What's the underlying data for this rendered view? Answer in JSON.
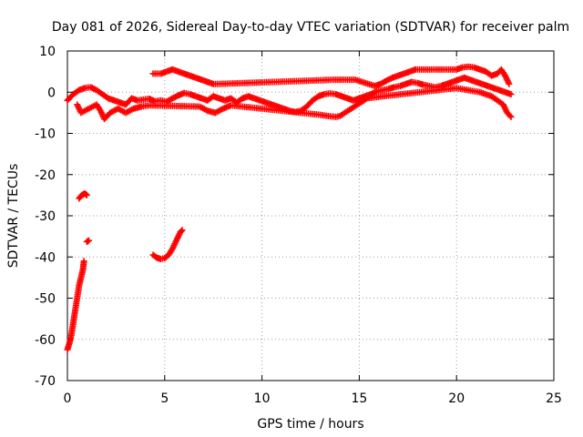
{
  "chart_data": {
    "type": "scatter",
    "title": "Day 081 of 2026, Sidereal Day-to-day VTEC variation (SDTVAR) for receiver palm",
    "xlabel": "GPS time / hours",
    "ylabel": "SDTVAR / TECUs",
    "xlim": [
      0,
      25
    ],
    "ylim": [
      -70,
      10
    ],
    "xticks": [
      "0",
      "5",
      "10",
      "15",
      "20",
      "25"
    ],
    "yticks": [
      "10",
      "0",
      "-10",
      "-20",
      "-30",
      "-40",
      "-50",
      "-60",
      "-70"
    ],
    "grid": true,
    "marker": "+",
    "series": [
      {
        "name": "SDTVAR",
        "color": "#ff0000",
        "segments": [
          {
            "label": "steep rise",
            "points": [
              [
                0.0,
                -62.5
              ],
              [
                0.1,
                -61
              ],
              [
                0.2,
                -59
              ],
              [
                0.3,
                -56
              ],
              [
                0.4,
                -53
              ],
              [
                0.5,
                -50
              ],
              [
                0.6,
                -47
              ],
              [
                0.7,
                -45
              ],
              [
                0.8,
                -43
              ],
              [
                0.85,
                -41
              ]
            ]
          },
          {
            "label": "cluster near -25",
            "points": [
              [
                0.6,
                -25.8
              ],
              [
                0.7,
                -25.2
              ],
              [
                0.8,
                -24.8
              ],
              [
                0.9,
                -24.6
              ],
              [
                1.0,
                -25.0
              ]
            ]
          },
          {
            "label": "point near -36",
            "points": [
              [
                1.0,
                -36.3
              ],
              [
                1.1,
                -36.0
              ]
            ]
          },
          {
            "label": "arc near -40",
            "points": [
              [
                4.4,
                -39.5
              ],
              [
                4.6,
                -40.2
              ],
              [
                4.8,
                -40.5
              ],
              [
                5.0,
                -40.3
              ],
              [
                5.2,
                -39.5
              ],
              [
                5.4,
                -38
              ],
              [
                5.6,
                -36
              ],
              [
                5.8,
                -34
              ],
              [
                5.9,
                -33.5
              ]
            ]
          },
          {
            "label": "main band",
            "points": [
              [
                0.0,
                -2
              ],
              [
                0.3,
                -0.5
              ],
              [
                0.6,
                0.5
              ],
              [
                0.9,
                1.0
              ],
              [
                1.2,
                1.2
              ],
              [
                1.5,
                0.5
              ],
              [
                1.8,
                -0.5
              ],
              [
                2.1,
                -1.5
              ],
              [
                2.4,
                -2.0
              ],
              [
                2.7,
                -2.5
              ],
              [
                3.0,
                -3.0
              ],
              [
                3.3,
                -1.5
              ],
              [
                3.6,
                -2.0
              ],
              [
                3.9,
                -1.8
              ],
              [
                4.2,
                -1.6
              ],
              [
                4.5,
                -2.2
              ],
              [
                4.8,
                -2.0
              ],
              [
                5.1,
                -2.3
              ],
              [
                5.4,
                -1.5
              ],
              [
                5.7,
                -0.8
              ],
              [
                6.0,
                -0.2
              ],
              [
                6.3,
                -0.5
              ],
              [
                6.6,
                -1.0
              ],
              [
                6.9,
                -1.5
              ],
              [
                7.2,
                -2.0
              ],
              [
                7.5,
                -1.0
              ],
              [
                7.8,
                -1.5
              ],
              [
                8.1,
                -2.0
              ],
              [
                8.4,
                -1.5
              ],
              [
                8.7,
                -2.5
              ],
              [
                9.0,
                -1.5
              ],
              [
                9.3,
                -1.0
              ],
              [
                9.6,
                -1.5
              ],
              [
                9.9,
                -2.0
              ],
              [
                10.2,
                -2.5
              ],
              [
                10.5,
                -3.0
              ],
              [
                10.8,
                -3.5
              ],
              [
                11.1,
                -4.0
              ],
              [
                11.4,
                -4.5
              ],
              [
                11.7,
                -4.8
              ],
              [
                12.0,
                -4.5
              ],
              [
                12.3,
                -3.5
              ],
              [
                12.6,
                -2.0
              ],
              [
                12.9,
                -1.0
              ],
              [
                13.2,
                -0.5
              ],
              [
                13.5,
                -0.3
              ],
              [
                13.8,
                -0.5
              ],
              [
                14.1,
                -1.0
              ],
              [
                14.4,
                -1.5
              ],
              [
                14.7,
                -2.0
              ],
              [
                15.0,
                -1.5
              ],
              [
                15.3,
                -1.0
              ],
              [
                15.6,
                -0.5
              ],
              [
                15.9,
                0.2
              ],
              [
                16.2,
                0.5
              ],
              [
                16.5,
                0.8
              ],
              [
                16.8,
                1.2
              ],
              [
                17.1,
                1.5
              ],
              [
                17.4,
                2.0
              ],
              [
                17.7,
                2.5
              ],
              [
                18.0,
                2.2
              ],
              [
                18.3,
                1.8
              ],
              [
                18.6,
                1.5
              ],
              [
                18.9,
                1.2
              ],
              [
                19.2,
                1.5
              ],
              [
                19.5,
                2.0
              ],
              [
                19.8,
                2.5
              ],
              [
                20.1,
                3.0
              ],
              [
                20.4,
                3.5
              ],
              [
                20.7,
                3.0
              ],
              [
                21.0,
                2.5
              ],
              [
                21.3,
                2.0
              ],
              [
                21.6,
                1.5
              ],
              [
                21.9,
                1.0
              ],
              [
                22.2,
                0.5
              ],
              [
                22.5,
                0.0
              ],
              [
                22.8,
                -0.5
              ]
            ]
          },
          {
            "label": "lower band",
            "points": [
              [
                0.5,
                -3
              ],
              [
                0.7,
                -5
              ],
              [
                1.5,
                -3
              ],
              [
                1.7,
                -4.5
              ],
              [
                1.9,
                -6.5
              ],
              [
                2.2,
                -5
              ],
              [
                2.6,
                -4
              ],
              [
                3.0,
                -5
              ],
              [
                3.4,
                -4
              ],
              [
                3.8,
                -3.5
              ],
              [
                4.2,
                -3.2
              ],
              [
                6.8,
                -3.5
              ],
              [
                7.2,
                -4.5
              ],
              [
                7.6,
                -5
              ],
              [
                8.0,
                -4
              ],
              [
                8.4,
                -3.2
              ],
              [
                13.0,
                -5.5
              ],
              [
                13.4,
                -5.8
              ],
              [
                13.8,
                -6.0
              ],
              [
                14.0,
                -5.8
              ],
              [
                15.4,
                -1.5
              ],
              [
                16.2,
                -1.0
              ],
              [
                20.0,
                1.0
              ],
              [
                20.6,
                0.5
              ],
              [
                21.2,
                0.0
              ],
              [
                21.8,
                -1.0
              ],
              [
                22.4,
                -3.0
              ],
              [
                22.6,
                -5.0
              ],
              [
                22.8,
                -6.0
              ]
            ]
          },
          {
            "label": "upper band",
            "points": [
              [
                4.4,
                4.5
              ],
              [
                4.8,
                4.5
              ],
              [
                5.1,
                5.0
              ],
              [
                5.4,
                5.5
              ],
              [
                5.7,
                5.0
              ],
              [
                6.0,
                4.5
              ],
              [
                6.3,
                4.0
              ],
              [
                6.6,
                3.5
              ],
              [
                6.9,
                3.0
              ],
              [
                7.2,
                2.5
              ],
              [
                7.5,
                2.0
              ],
              [
                7.8,
                2.0
              ],
              [
                13.6,
                3.0
              ],
              [
                13.9,
                3.0
              ],
              [
                14.2,
                3.0
              ],
              [
                14.5,
                3.0
              ],
              [
                14.8,
                3.0
              ],
              [
                15.8,
                1.5
              ],
              [
                16.1,
                2.0
              ],
              [
                16.4,
                2.8
              ],
              [
                16.7,
                3.5
              ],
              [
                17.0,
                4.0
              ],
              [
                17.3,
                4.5
              ],
              [
                17.6,
                5.0
              ],
              [
                17.9,
                5.5
              ],
              [
                20.0,
                5.5
              ],
              [
                20.3,
                6.0
              ],
              [
                20.6,
                6.2
              ],
              [
                20.9,
                6.0
              ],
              [
                21.2,
                5.5
              ],
              [
                21.5,
                5.0
              ],
              [
                21.8,
                4.0
              ],
              [
                22.1,
                4.5
              ],
              [
                22.3,
                5.5
              ],
              [
                22.5,
                4.0
              ],
              [
                22.7,
                2.0
              ]
            ]
          }
        ]
      }
    ]
  }
}
